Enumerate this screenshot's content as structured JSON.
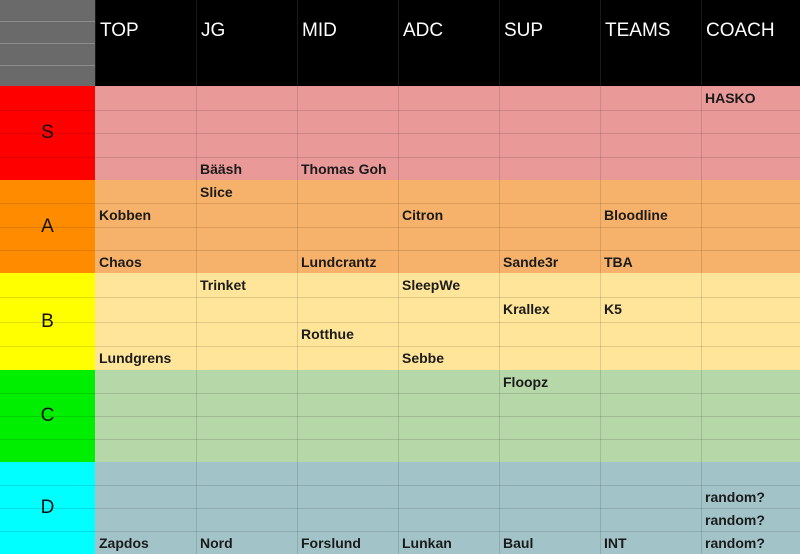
{
  "columns": [
    "TOP",
    "JG",
    "MID",
    "ADC",
    "SUP",
    "TEAMS",
    "COACH"
  ],
  "tiers": [
    {
      "name": "S",
      "label_color": "#ff0000",
      "fill_color": "#ea9999",
      "rows": 4
    },
    {
      "name": "A",
      "label_color": "#ff8c00",
      "fill_color": "#f6b26b",
      "rows": 4
    },
    {
      "name": "B",
      "label_color": "#ffff00",
      "fill_color": "#ffe599",
      "rows": 4
    },
    {
      "name": "C",
      "label_color": "#00ee00",
      "fill_color": "#b6d7a8",
      "rows": 4
    },
    {
      "name": "D",
      "label_color": "#00ffff",
      "fill_color": "#a2c4c9",
      "rows": 4
    }
  ],
  "entries": [
    {
      "tier": 0,
      "row": 0,
      "col": 6,
      "text": "HASKO"
    },
    {
      "tier": 0,
      "row": 3,
      "col": 1,
      "text": "Bääsh"
    },
    {
      "tier": 0,
      "row": 3,
      "col": 2,
      "text": "Thomas Goh"
    },
    {
      "tier": 1,
      "row": 0,
      "col": 1,
      "text": "Slice"
    },
    {
      "tier": 1,
      "row": 1,
      "col": 0,
      "text": "Kobben"
    },
    {
      "tier": 1,
      "row": 1,
      "col": 3,
      "text": "Citron"
    },
    {
      "tier": 1,
      "row": 1,
      "col": 5,
      "text": "Bloodline"
    },
    {
      "tier": 1,
      "row": 3,
      "col": 0,
      "text": "Chaos"
    },
    {
      "tier": 1,
      "row": 3,
      "col": 2,
      "text": "Lundcrantz"
    },
    {
      "tier": 1,
      "row": 3,
      "col": 4,
      "text": "Sande3r"
    },
    {
      "tier": 1,
      "row": 3,
      "col": 5,
      "text": "TBA"
    },
    {
      "tier": 2,
      "row": 0,
      "col": 1,
      "text": "Trinket"
    },
    {
      "tier": 2,
      "row": 0,
      "col": 3,
      "text": "SleepWe"
    },
    {
      "tier": 2,
      "row": 1,
      "col": 4,
      "text": "Krallex"
    },
    {
      "tier": 2,
      "row": 1,
      "col": 5,
      "text": "K5"
    },
    {
      "tier": 2,
      "row": 2,
      "col": 2,
      "text": "Rotthue"
    },
    {
      "tier": 2,
      "row": 3,
      "col": 0,
      "text": "Lundgrens"
    },
    {
      "tier": 2,
      "row": 3,
      "col": 3,
      "text": "Sebbe"
    },
    {
      "tier": 3,
      "row": 0,
      "col": 4,
      "text": "Floopz"
    },
    {
      "tier": 4,
      "row": 1,
      "col": 6,
      "text": "random?"
    },
    {
      "tier": 4,
      "row": 2,
      "col": 6,
      "text": "random?"
    },
    {
      "tier": 4,
      "row": 3,
      "col": 0,
      "text": "Zapdos"
    },
    {
      "tier": 4,
      "row": 3,
      "col": 1,
      "text": "Nord"
    },
    {
      "tier": 4,
      "row": 3,
      "col": 2,
      "text": "Forslund"
    },
    {
      "tier": 4,
      "row": 3,
      "col": 3,
      "text": "Lunkan"
    },
    {
      "tier": 4,
      "row": 3,
      "col": 4,
      "text": "Baul"
    },
    {
      "tier": 4,
      "row": 3,
      "col": 5,
      "text": "INT"
    },
    {
      "tier": 4,
      "row": 3,
      "col": 6,
      "text": "random?"
    }
  ]
}
